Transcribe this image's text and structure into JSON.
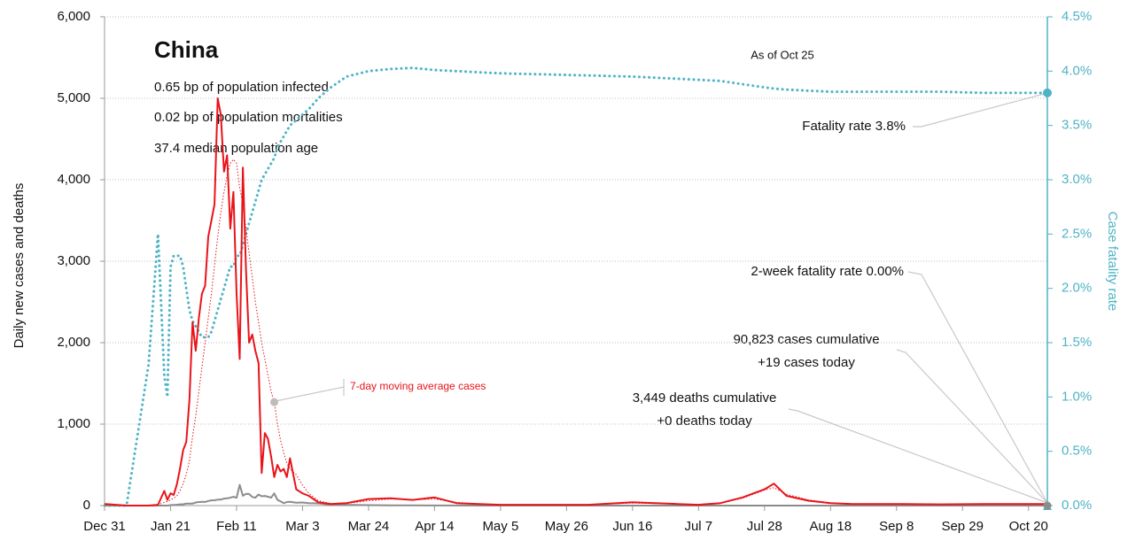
{
  "chart_data": {
    "type": "line",
    "title": "China",
    "stats": [
      "0.65 bp of population infected",
      "0.02 bp of population mortalities",
      "37.4 median population age"
    ],
    "as_of": "As of Oct 25",
    "ylabel": "Daily new cases and deaths",
    "y2label": "Case fatality rate",
    "annotations": {
      "fatality_rate": "Fatality rate 3.8%",
      "two_week_fatality": "2-week fatality rate 0.00%",
      "cases": [
        "90,823 cases cumulative",
        "+19 cases today"
      ],
      "deaths": [
        "3,449 deaths cumulative",
        "+0 deaths today"
      ],
      "moving_average": "7-day moving average cases"
    },
    "x": [
      "Dec 31",
      "Jan 7",
      "Jan 14",
      "Jan 17",
      "Jan 19",
      "Jan 20",
      "Jan 21",
      "Jan 22",
      "Jan 23",
      "Jan 24",
      "Jan 25",
      "Jan 26",
      "Jan 27",
      "Jan 28",
      "Jan 29",
      "Jan 30",
      "Jan 31",
      "Feb 1",
      "Feb 2",
      "Feb 3",
      "Feb 4",
      "Feb 5",
      "Feb 6",
      "Feb 7",
      "Feb 8",
      "Feb 9",
      "Feb 10",
      "Feb 11",
      "Feb 12",
      "Feb 13",
      "Feb 14",
      "Feb 15",
      "Feb 16",
      "Feb 17",
      "Feb 18",
      "Feb 19",
      "Feb 20",
      "Feb 21",
      "Feb 22",
      "Feb 23",
      "Feb 24",
      "Feb 25",
      "Feb 26",
      "Feb 27",
      "Feb 28",
      "Mar 1",
      "Mar 3",
      "Mar 5",
      "Mar 8",
      "Mar 12",
      "Mar 17",
      "Mar 24",
      "Mar 31",
      "Apr 7",
      "Apr 14",
      "Apr 21",
      "Apr 28",
      "May 5",
      "May 19",
      "Jun 2",
      "Jun 16",
      "Jun 30",
      "Jul 7",
      "Jul 14",
      "Jul 21",
      "Jul 28",
      "Jul 31",
      "Aug 4",
      "Aug 11",
      "Aug 18",
      "Aug 25",
      "Sep 8",
      "Sep 22",
      "Oct 6",
      "Oct 20",
      "Oct 25"
    ],
    "series": [
      {
        "name": "cases",
        "color": "#e8141a",
        "style": "solid",
        "axis": "y",
        "values": [
          20,
          0,
          0,
          10,
          180,
          70,
          150,
          130,
          260,
          450,
          680,
          780,
          1300,
          2250,
          1900,
          2300,
          2600,
          2700,
          3300,
          3500,
          3700,
          5000,
          4800,
          4100,
          4300,
          3400,
          3850,
          2600,
          1800,
          4150,
          2900,
          2000,
          2100,
          1900,
          1750,
          400,
          890,
          820,
          600,
          350,
          500,
          420,
          450,
          350,
          580,
          200,
          150,
          120,
          40,
          20,
          30,
          80,
          90,
          70,
          100,
          30,
          20,
          10,
          10,
          10,
          40,
          20,
          10,
          30,
          100,
          200,
          270,
          120,
          60,
          30,
          20,
          20,
          15,
          20,
          20,
          19
        ]
      },
      {
        "name": "7-day moving average cases",
        "color": "#e8141a",
        "style": "dotted-thin",
        "axis": "y",
        "values": [
          10,
          5,
          5,
          10,
          40,
          50,
          70,
          90,
          120,
          180,
          270,
          380,
          550,
          850,
          1100,
          1400,
          1700,
          2000,
          2300,
          2600,
          2950,
          3300,
          3600,
          3850,
          4050,
          4200,
          4250,
          4200,
          3900,
          3700,
          3400,
          3100,
          2800,
          2500,
          2250,
          2000,
          1800,
          1600,
          1400,
          1270,
          1000,
          800,
          650,
          520,
          450,
          380,
          250,
          150,
          60,
          25,
          25,
          60,
          80,
          70,
          80,
          40,
          20,
          10,
          10,
          10,
          30,
          20,
          15,
          30,
          90,
          190,
          220,
          140,
          70,
          35,
          20,
          20,
          15,
          20,
          20,
          20
        ]
      },
      {
        "name": "deaths",
        "color": "#8c8c8c",
        "style": "solid",
        "axis": "y",
        "values": [
          0,
          0,
          0,
          0,
          0,
          0,
          5,
          8,
          10,
          15,
          15,
          25,
          25,
          25,
          38,
          43,
          46,
          45,
          57,
          64,
          65,
          73,
          73,
          86,
          89,
          97,
          108,
          97,
          254,
          121,
          143,
          142,
          105,
          98,
          136,
          114,
          118,
          109,
          97,
          150,
          71,
          52,
          29,
          44,
          47,
          35,
          38,
          30,
          27,
          10,
          10,
          5,
          2,
          2,
          1,
          1,
          0,
          0,
          0,
          0,
          0,
          0,
          0,
          0,
          0,
          0,
          0,
          0,
          0,
          0,
          0,
          0,
          0,
          0,
          0,
          0
        ]
      },
      {
        "name": "Case fatality rate",
        "color": "#4fb3c6",
        "style": "dotted",
        "axis": "y2",
        "values": [
          0,
          0,
          1.3,
          2.5,
          1.2,
          1.0,
          2.2,
          2.3,
          2.3,
          2.3,
          2.2,
          2.0,
          1.8,
          1.7,
          1.65,
          1.6,
          1.55,
          1.55,
          1.55,
          1.6,
          1.7,
          1.8,
          1.9,
          2.0,
          2.1,
          2.2,
          2.2,
          2.3,
          2.3,
          2.4,
          2.5,
          2.6,
          2.7,
          2.8,
          2.9,
          3.0,
          3.05,
          3.1,
          3.15,
          3.2,
          3.3,
          3.35,
          3.4,
          3.45,
          3.5,
          3.55,
          3.6,
          3.65,
          3.75,
          3.85,
          3.95,
          4.0,
          4.02,
          4.03,
          4.01,
          4.0,
          3.99,
          3.98,
          3.97,
          3.96,
          3.95,
          3.93,
          3.92,
          3.91,
          3.88,
          3.85,
          3.84,
          3.83,
          3.82,
          3.81,
          3.81,
          3.81,
          3.81,
          3.8,
          3.8,
          3.8
        ]
      }
    ],
    "xlim": [
      "Dec 31",
      "Oct 26"
    ],
    "xticks": [
      "Dec 31",
      "Jan 21",
      "Feb 11",
      "Mar 3",
      "Mar 24",
      "Apr 14",
      "May 5",
      "May 26",
      "Jun 16",
      "Jul 7",
      "Jul 28",
      "Aug 18",
      "Sep 8",
      "Sep 29",
      "Oct 20"
    ],
    "ylim": [
      0,
      6000
    ],
    "yticks": [
      0,
      {
        "value": 1000,
        "label": "1,000"
      },
      {
        "value": 2000,
        "label": "2,000"
      },
      {
        "value": 3000,
        "label": "3,000"
      },
      {
        "value": 4000,
        "label": "4,000"
      },
      {
        "value": 5000,
        "label": "5,000"
      },
      {
        "value": 6000,
        "label": "6,000"
      }
    ],
    "y2lim": [
      0,
      4.5
    ],
    "y2ticks": [
      {
        "value": 0,
        "label": "0.0%"
      },
      {
        "value": 0.5,
        "label": "0.5%"
      },
      {
        "value": 1,
        "label": "1.0%"
      },
      {
        "value": 1.5,
        "label": "1.5%"
      },
      {
        "value": 2,
        "label": "2.0%"
      },
      {
        "value": 2.5,
        "label": "2.5%"
      },
      {
        "value": 3,
        "label": "3.0%"
      },
      {
        "value": 3.5,
        "label": "3.5%"
      },
      {
        "value": 4,
        "label": "4.0%"
      },
      {
        "value": 4.5,
        "label": "4.5%"
      }
    ],
    "grid": true,
    "axis_colors": {
      "y": "#9a9a9a",
      "y2": "#4fb3c6"
    }
  }
}
